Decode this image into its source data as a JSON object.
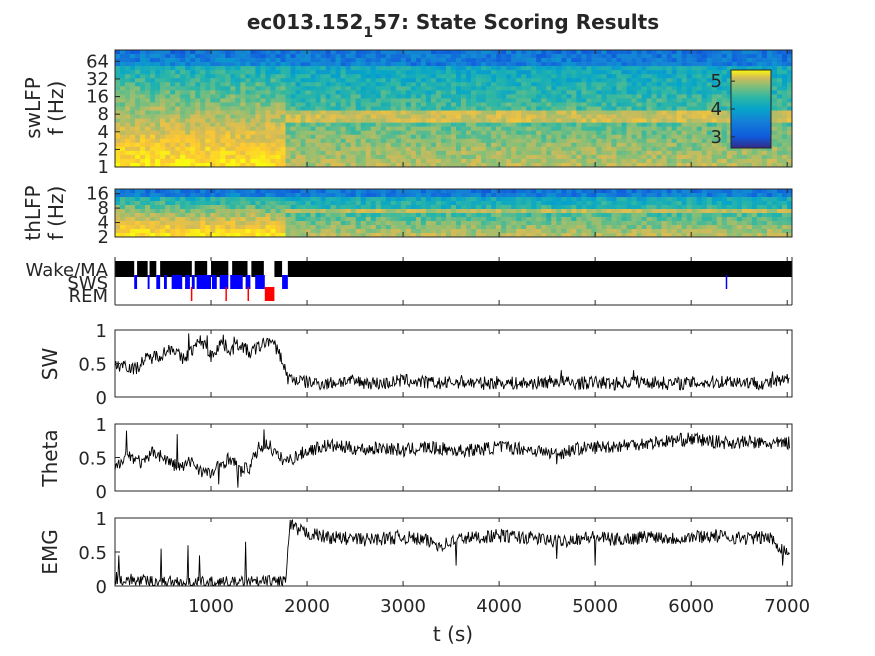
{
  "chart_data": {
    "title_main": "ec013.152",
    "title_sub": "1",
    "title_tail": "57: State Scoring Results",
    "xlabel": "t (s)",
    "xlim": [
      0,
      7050
    ],
    "xticks": [
      1000,
      2000,
      3000,
      4000,
      5000,
      6000,
      7000
    ],
    "panels": [
      {
        "id": "swLFP",
        "type": "heatmap",
        "ylabel": [
          "swLFP",
          "f (Hz)"
        ],
        "yscale": "log",
        "yticks": [
          1,
          2,
          4,
          8,
          16,
          32,
          64
        ],
        "ylim": [
          1,
          100
        ],
        "colormap": "parula",
        "colorbar": {
          "ticks": [
            3,
            4,
            5
          ],
          "range": [
            2.6,
            5.4
          ]
        },
        "bands": [
          {
            "f": 8,
            "t_start": 1800,
            "t_end": 7050,
            "note": "theta band"
          }
        ]
      },
      {
        "id": "thLFP",
        "type": "heatmap",
        "ylabel": [
          "thLFP",
          "f (Hz)"
        ],
        "yscale": "log",
        "yticks": [
          2,
          4,
          8,
          16
        ],
        "ylim": [
          2,
          20
        ],
        "colormap": "parula"
      },
      {
        "id": "states",
        "type": "hypnogram",
        "states": [
          "Wake/MA",
          "SWS",
          "REM"
        ],
        "colors": [
          "#000000",
          "#0000ff",
          "#ff0000"
        ],
        "segments": {
          "Wake/MA": [
            [
              0,
              200
            ],
            [
              230,
              340
            ],
            [
              360,
              430
            ],
            [
              470,
              800
            ],
            [
              830,
              960
            ],
            [
              1000,
              1180
            ],
            [
              1220,
              1380
            ],
            [
              1420,
              1550
            ],
            [
              1660,
              1740
            ],
            [
              1800,
              7050
            ]
          ],
          "SWS": [
            [
              200,
              230
            ],
            [
              340,
              360
            ],
            [
              430,
              470
            ],
            [
              510,
              540
            ],
            [
              590,
              700
            ],
            [
              730,
              780
            ],
            [
              800,
              830
            ],
            [
              850,
              1000
            ],
            [
              1010,
              1060
            ],
            [
              1090,
              1180
            ],
            [
              1200,
              1330
            ],
            [
              1360,
              1410
            ],
            [
              1460,
              1560
            ],
            [
              1740,
              1800
            ],
            [
              6360,
              6370
            ]
          ],
          "REM": [
            [
              790,
              800
            ],
            [
              1150,
              1160
            ],
            [
              1380,
              1390
            ],
            [
              1560,
              1660
            ]
          ]
        }
      },
      {
        "id": "SW",
        "type": "line",
        "ylabel": "SW",
        "ylim": [
          0,
          1
        ],
        "yticks": [
          0,
          0.5,
          1
        ]
      },
      {
        "id": "Theta",
        "type": "line",
        "ylabel": "Theta",
        "ylim": [
          0,
          1
        ],
        "yticks": [
          0,
          0.5,
          1
        ]
      },
      {
        "id": "EMG",
        "type": "line",
        "ylabel": "EMG",
        "ylim": [
          0,
          1
        ],
        "yticks": [
          0,
          0.5,
          1
        ]
      }
    ],
    "series": {
      "SW": {
        "x": [
          0,
          100,
          200,
          300,
          400,
          500,
          600,
          700,
          800,
          900,
          1000,
          1100,
          1200,
          1300,
          1400,
          1500,
          1600,
          1700,
          1750,
          1800,
          1900,
          2000,
          2200,
          2400,
          2600,
          2800,
          3000,
          3200,
          3400,
          3600,
          3800,
          4000,
          4200,
          4400,
          4600,
          4800,
          5000,
          5200,
          5400,
          5600,
          5800,
          6000,
          6200,
          6400,
          6600,
          6800,
          7000
        ],
        "y": [
          0.45,
          0.5,
          0.4,
          0.55,
          0.6,
          0.65,
          0.75,
          0.55,
          0.7,
          0.85,
          0.6,
          0.82,
          0.7,
          0.8,
          0.65,
          0.75,
          0.85,
          0.7,
          0.5,
          0.28,
          0.25,
          0.22,
          0.2,
          0.24,
          0.22,
          0.2,
          0.25,
          0.22,
          0.2,
          0.23,
          0.2,
          0.22,
          0.2,
          0.21,
          0.24,
          0.2,
          0.22,
          0.2,
          0.23,
          0.22,
          0.2,
          0.21,
          0.22,
          0.24,
          0.22,
          0.2,
          0.25
        ],
        "spikes": [
          [
            770,
            0.95
          ],
          [
            960,
            0.92
          ],
          [
            1130,
            0.93
          ],
          [
            1240,
            0.9
          ],
          [
            1640,
            0.85
          ],
          [
            2620,
            0.45
          ],
          [
            4650,
            0.4
          ],
          [
            5400,
            0.4
          ],
          [
            6580,
            0.45
          ],
          [
            6850,
            0.38
          ]
        ]
      },
      "Theta": {
        "x": [
          0,
          100,
          200,
          300,
          400,
          500,
          600,
          700,
          800,
          900,
          1000,
          1100,
          1200,
          1300,
          1400,
          1500,
          1600,
          1700,
          1800,
          2000,
          2200,
          2400,
          2600,
          2800,
          3000,
          3200,
          3400,
          3600,
          3800,
          4000,
          4200,
          4400,
          4600,
          4800,
          5000,
          5200,
          5400,
          5600,
          5800,
          6000,
          6200,
          6400,
          6600,
          6800,
          7000
        ],
        "y": [
          0.3,
          0.55,
          0.5,
          0.4,
          0.6,
          0.5,
          0.4,
          0.35,
          0.45,
          0.3,
          0.25,
          0.4,
          0.5,
          0.3,
          0.35,
          0.65,
          0.7,
          0.5,
          0.45,
          0.6,
          0.68,
          0.65,
          0.62,
          0.65,
          0.6,
          0.65,
          0.63,
          0.6,
          0.62,
          0.66,
          0.64,
          0.6,
          0.55,
          0.63,
          0.65,
          0.67,
          0.7,
          0.72,
          0.75,
          0.78,
          0.74,
          0.72,
          0.73,
          0.7,
          0.72
        ],
        "spikes": [
          [
            120,
            0.9
          ],
          [
            650,
            0.85
          ],
          [
            1550,
            0.92
          ],
          [
            1280,
            0.05
          ],
          [
            1080,
            0.1
          ],
          [
            4600,
            0.4
          ],
          [
            5300,
            0.92
          ],
          [
            6700,
            0.9
          ]
        ]
      },
      "EMG": {
        "x": [
          0,
          100,
          200,
          300,
          400,
          500,
          600,
          700,
          800,
          900,
          1000,
          1100,
          1200,
          1300,
          1400,
          1500,
          1600,
          1700,
          1780,
          1820,
          1900,
          2000,
          2200,
          2400,
          2600,
          2800,
          3000,
          3200,
          3400,
          3600,
          3800,
          4000,
          4200,
          4400,
          4600,
          4800,
          5000,
          5200,
          5400,
          5600,
          5800,
          6000,
          6200,
          6400,
          6600,
          6800,
          7000
        ],
        "y": [
          0.12,
          0.1,
          0.08,
          0.07,
          0.06,
          0.05,
          0.06,
          0.05,
          0.04,
          0.04,
          0.04,
          0.05,
          0.04,
          0.04,
          0.05,
          0.05,
          0.06,
          0.07,
          0.08,
          0.9,
          0.82,
          0.78,
          0.72,
          0.7,
          0.68,
          0.7,
          0.72,
          0.68,
          0.6,
          0.7,
          0.72,
          0.74,
          0.72,
          0.7,
          0.65,
          0.7,
          0.72,
          0.68,
          0.7,
          0.74,
          0.7,
          0.72,
          0.74,
          0.72,
          0.7,
          0.72,
          0.5
        ],
        "spikes": [
          [
            40,
            0.45
          ],
          [
            220,
            0.55
          ],
          [
            340,
            0.55
          ],
          [
            480,
            0.55
          ],
          [
            580,
            0.3
          ],
          [
            760,
            0.6
          ],
          [
            880,
            0.45
          ],
          [
            1140,
            0.5
          ],
          [
            1360,
            0.65
          ],
          [
            1620,
            0.7
          ],
          [
            1740,
            0.6
          ],
          [
            3550,
            0.3
          ],
          [
            4600,
            0.4
          ],
          [
            5000,
            0.3
          ],
          [
            6100,
            0.3
          ],
          [
            6950,
            0.3
          ]
        ]
      }
    }
  }
}
